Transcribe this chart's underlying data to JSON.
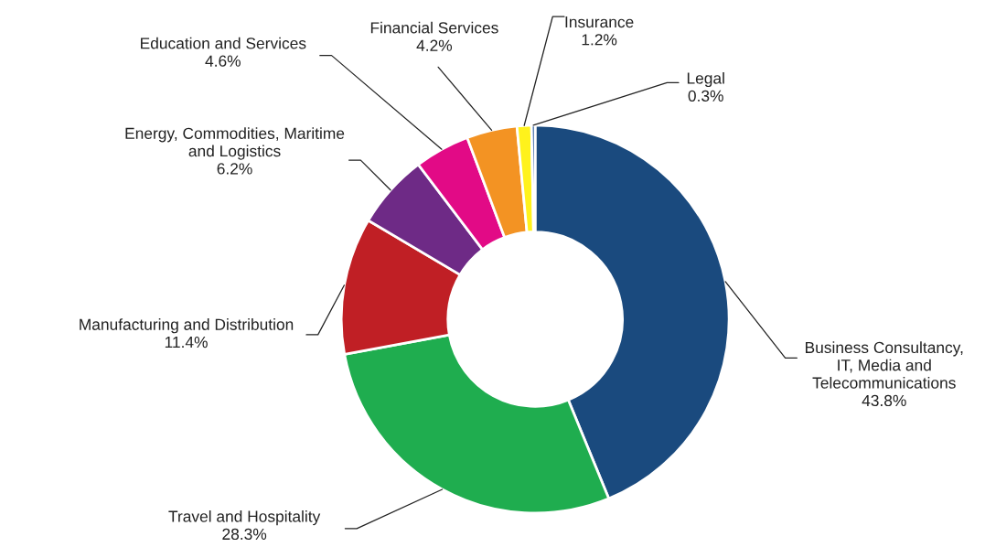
{
  "chart_data": {
    "type": "donut",
    "categories": [
      "Business Consultancy,\nIT, Media and\nTelecommunications",
      "Travel and Hospitality",
      "Manufacturing and Distribution",
      "Energy, Commodities, Maritime\nand Logistics",
      "Education and Services",
      "Financial Services",
      "Insurance",
      "Legal"
    ],
    "values": [
      43.8,
      28.3,
      11.4,
      6.2,
      4.6,
      4.2,
      1.2,
      0.3
    ],
    "value_labels": [
      "43.8%",
      "28.3%",
      "11.4%",
      "6.2%",
      "4.6%",
      "4.2%",
      "1.2%",
      "0.3%"
    ],
    "colors": [
      "#1a4a7e",
      "#1fad4f",
      "#c01f25",
      "#6e2a86",
      "#e20a86",
      "#f39323",
      "#fff21c",
      "#2f5d9e"
    ],
    "legend": false
  }
}
